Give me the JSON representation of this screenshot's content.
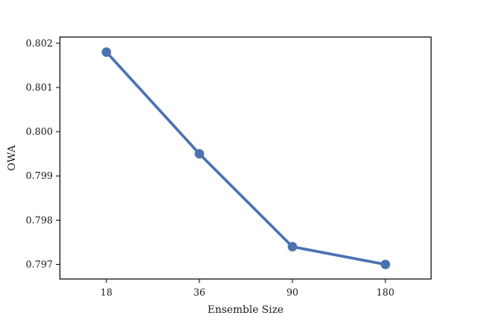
{
  "chart_data": {
    "type": "line",
    "title": "",
    "xlabel": "Ensemble Size",
    "ylabel": "OWA",
    "categories": [
      "18",
      "36",
      "90",
      "180"
    ],
    "series": [
      {
        "values": [
          0.8018,
          0.7995,
          0.7974,
          0.797
        ]
      }
    ],
    "yticks": [
      "0.797",
      "0.798",
      "0.799",
      "0.800",
      "0.801",
      "0.802"
    ],
    "ylim": [
      0.79667,
      0.80214
    ],
    "grid": false,
    "legend": "none",
    "line_color": "#4c72b0",
    "axis_color": "#1a1a1a"
  }
}
